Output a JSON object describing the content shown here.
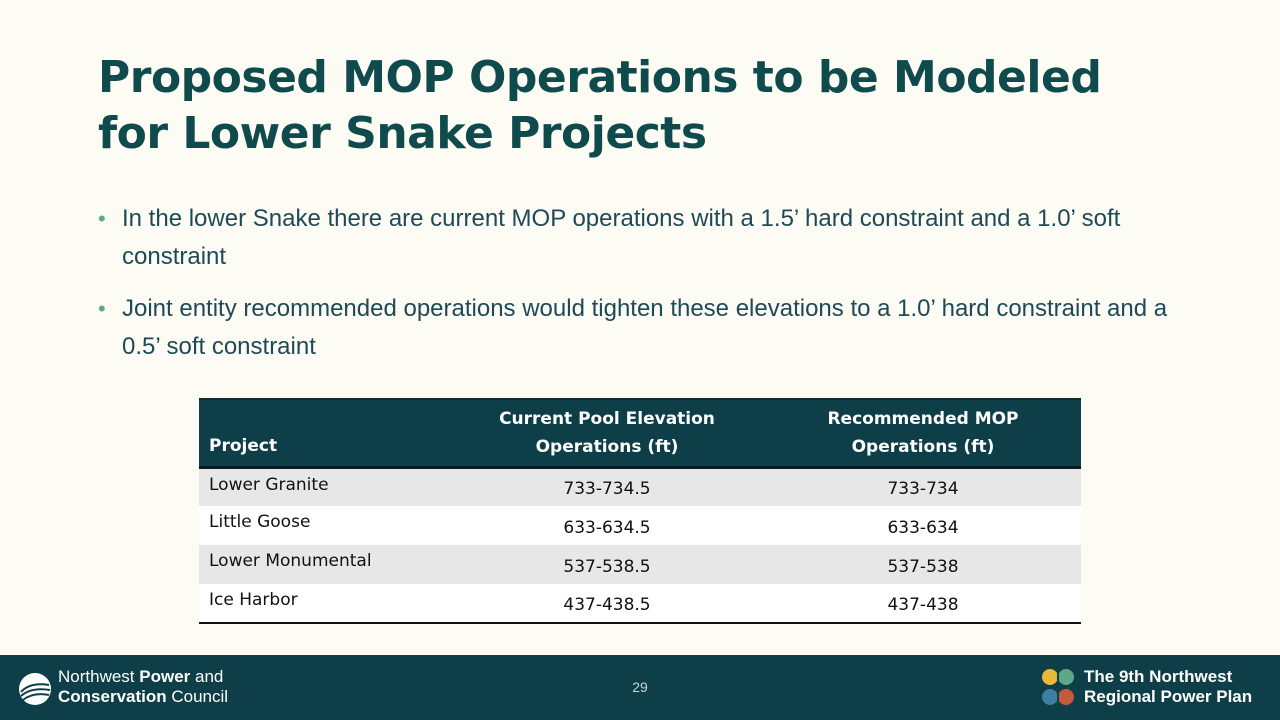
{
  "title": {
    "line1": "Proposed MOP Operations to be Modeled",
    "line2": "for Lower Snake Projects"
  },
  "bullets": [
    "In the lower Snake there are current MOP operations with a 1.5’ hard constraint and a 1.0’ soft constraint",
    "Joint entity recommended operations would tighten these elevations to a 1.0’ hard constraint and a 0.5’ soft constraint"
  ],
  "table": {
    "headers": {
      "project": "Project",
      "current_line1": "Current Pool Elevation",
      "current_line2": "Operations (ft)",
      "recommended_line1": "Recommended MOP",
      "recommended_line2": "Operations (ft)"
    },
    "rows": [
      {
        "project": "Lower Granite",
        "current": "733-734.5",
        "recommended": "733-734"
      },
      {
        "project": "Little Goose",
        "current": "633-634.5",
        "recommended": "633-634"
      },
      {
        "project": "Lower Monumental",
        "current": "537-538.5",
        "recommended": "537-538"
      },
      {
        "project": "Ice Harbor",
        "current": "437-438.5",
        "recommended": "437-438"
      }
    ]
  },
  "footer": {
    "council_line1_regular": "Northwest ",
    "council_line1_bold": "Power",
    "council_line1_end": " and",
    "council_line2_bold": "Conservation",
    "council_line2_end": " Council",
    "page_number": "29",
    "plan_line1": "The 9th Northwest",
    "plan_line2": "Regional Power Plan"
  },
  "colors": {
    "background": "#fcfbf4",
    "title": "#0f4a4c",
    "accent_teal": "#0e3e47",
    "bullet_dot": "#5ea88a"
  },
  "icons": {
    "council_logo": "council-wave-logo-icon",
    "plan_logo": "power-plan-logo-icon"
  }
}
